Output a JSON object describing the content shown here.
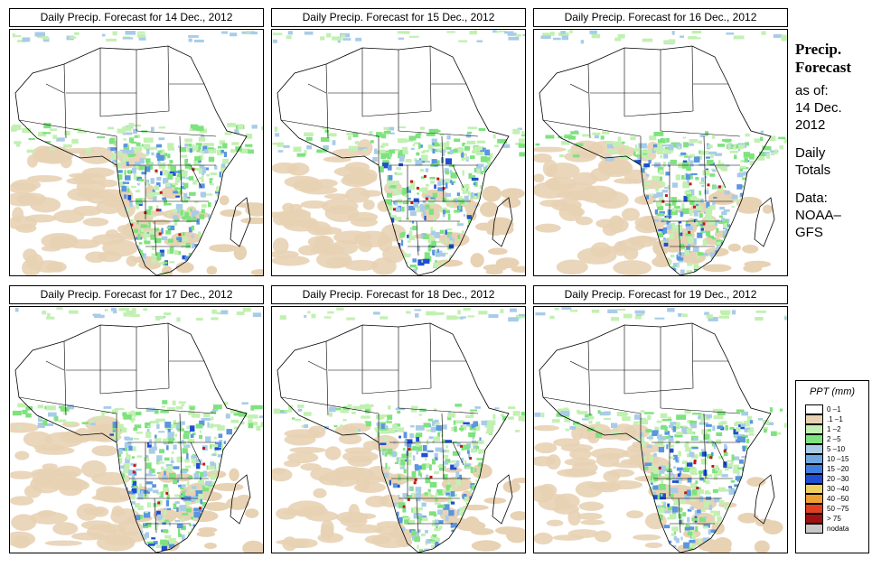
{
  "panels": [
    {
      "title": "Daily Precip. Forecast for  14 Dec., 2012"
    },
    {
      "title": "Daily Precip. Forecast for  15 Dec., 2012"
    },
    {
      "title": "Daily Precip. Forecast for  16 Dec., 2012"
    },
    {
      "title": "Daily Precip. Forecast for  17 Dec., 2012"
    },
    {
      "title": "Daily Precip. Forecast for  18 Dec., 2012"
    },
    {
      "title": "Daily Precip. Forecast for  19 Dec., 2012"
    }
  ],
  "side": {
    "heading_line1": "Precip.",
    "heading_line2": "Forecast",
    "asof_label": "as of:",
    "date_line1": "14 Dec.",
    "date_line2": "2012",
    "totals_line1": "Daily",
    "totals_line2": "Totals",
    "data_line1": "Data:",
    "data_line2": "NOAA–",
    "data_line3": "GFS"
  },
  "legend": {
    "title": "PPT (mm)",
    "items": [
      {
        "label": "0 –1",
        "color": "#ffffff"
      },
      {
        "label": ".1 –1",
        "color": "#e8d2b4"
      },
      {
        "label": "1 –2",
        "color": "#c2f0b2"
      },
      {
        "label": "2 –5",
        "color": "#7ee27e"
      },
      {
        "label": "5 –10",
        "color": "#a8cce8"
      },
      {
        "label": "10 –15",
        "color": "#6fa8e0"
      },
      {
        "label": "15 –20",
        "color": "#3f7fe0"
      },
      {
        "label": "20 –30",
        "color": "#1f4fd0"
      },
      {
        "label": "30 –40",
        "color": "#f0d060"
      },
      {
        "label": "40 –50",
        "color": "#f0a030"
      },
      {
        "label": "50 –75",
        "color": "#e04020"
      },
      {
        "label": "> 75",
        "color": "#a01010"
      },
      {
        "label": "nodata",
        "color": "#c8c8c8"
      }
    ]
  },
  "map": {
    "tan": "#e8d2b4",
    "light_green": "#c2f0b2",
    "green": "#7ee27e",
    "light_blue": "#a8cce8",
    "blue": "#5a96e0",
    "dark_blue": "#1f4fd0",
    "red": "#c01818"
  }
}
